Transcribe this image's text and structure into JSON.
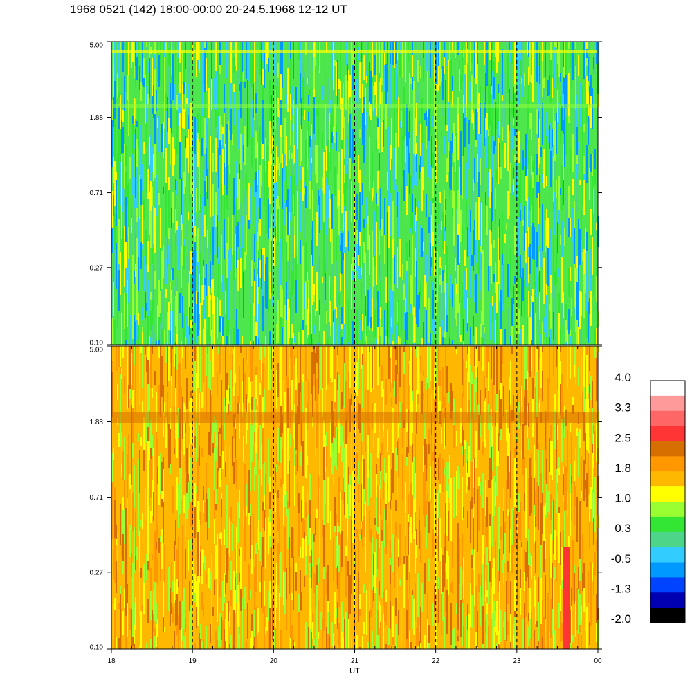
{
  "title": "1968 0521 (142) 18:00-00:00 20-24.5.1968  12-12 UT",
  "chart_data": [
    {
      "type": "heatmap",
      "name": "upper-panel",
      "x_range": [
        18,
        24
      ],
      "y_log": true,
      "y_range": [
        0.1,
        5.0
      ],
      "y_ticks": [
        "0.10",
        "0.27",
        "0.71",
        "1.88",
        "5.00"
      ],
      "y_tick_values": [
        0.1,
        0.27,
        0.71,
        1.88,
        5.0
      ],
      "dashed_gridlines_x": [
        19,
        20,
        21,
        22,
        23
      ],
      "dominant_level": "0.3"
    },
    {
      "type": "heatmap",
      "name": "lower-panel",
      "x_range": [
        18,
        24
      ],
      "y_log": true,
      "y_range": [
        0.1,
        5.0
      ],
      "y_ticks": [
        "0.10",
        "0.27",
        "0.71",
        "1.88",
        "5.00"
      ],
      "y_tick_values": [
        0.1,
        0.27,
        0.71,
        1.88,
        5.0
      ],
      "dashed_gridlines_x": [
        19,
        20,
        21,
        22,
        23
      ],
      "dominant_level": "1.8"
    }
  ],
  "x_axis": {
    "ticks": [
      "18",
      "19",
      "20",
      "21",
      "22",
      "23",
      "00"
    ],
    "tick_values": [
      18,
      19,
      20,
      21,
      22,
      23,
      24
    ],
    "label": "UT"
  },
  "colorbar": {
    "labels": [
      "4.0",
      "3.3",
      "2.5",
      "1.8",
      "1.0",
      "0.3",
      "-0.5",
      "-1.3",
      "-2.0"
    ],
    "colors_top_to_bottom": [
      "#ffffff",
      "#ff9a9a",
      "#ff6666",
      "#ff3535",
      "#d66f00",
      "#ff9800",
      "#ffb800",
      "#ffff00",
      "#99ff33",
      "#33e633",
      "#4dd68a",
      "#33ccff",
      "#0099ff",
      "#0044ff",
      "#0000b3",
      "#000000"
    ]
  },
  "palette": {
    "upper_base": "#4de64d",
    "upper_alt": [
      "#99ff33",
      "#33e633",
      "#4dd68a",
      "#33ccff",
      "#ffff00",
      "#0099ff"
    ],
    "lower_base": "#ffb800",
    "lower_alt": [
      "#ff9800",
      "#ffff00",
      "#d66f00",
      "#99ff33",
      "#ffb800"
    ],
    "accent": "#ff3535"
  }
}
